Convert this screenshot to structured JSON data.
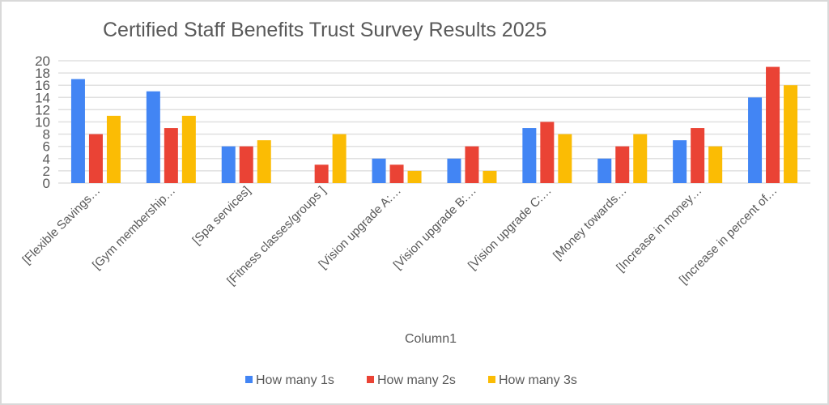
{
  "chart_data": {
    "type": "bar",
    "title": "Certified Staff Benefits Trust Survey Results 2025",
    "xlabel": "Column1",
    "ylabel": "",
    "ylim": [
      0,
      20
    ],
    "yticks": [
      0,
      2,
      4,
      6,
      8,
      10,
      12,
      14,
      16,
      18,
      20
    ],
    "grid": true,
    "legend_position": "bottom",
    "categories": [
      "[Flexible Savings…",
      "[Gym membership…",
      "[Spa services]",
      "[Fitness classes/groups ]",
      "[Vision upgrade A:…",
      "[Vision upgrade B:…",
      "[Vision upgrade C:…",
      "[Money towards…",
      "[Increase in money…",
      "[Increase in percent of…"
    ],
    "series": [
      {
        "name": "How many 1s",
        "color": "#4285f4",
        "values": [
          17,
          15,
          6,
          0,
          4,
          4,
          9,
          4,
          7,
          14
        ]
      },
      {
        "name": "How many 2s",
        "color": "#ea4335",
        "values": [
          8,
          9,
          6,
          3,
          3,
          6,
          10,
          6,
          9,
          19
        ]
      },
      {
        "name": "How many 3s",
        "color": "#fbbc04",
        "values": [
          11,
          11,
          7,
          8,
          2,
          2,
          8,
          8,
          6,
          16
        ]
      }
    ]
  }
}
